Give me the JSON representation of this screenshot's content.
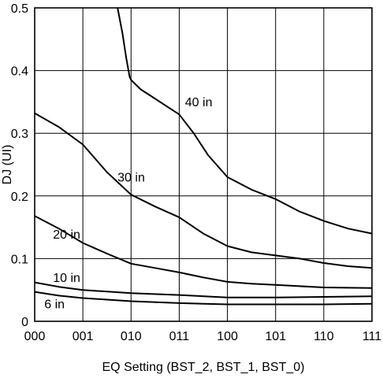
{
  "chart_data": {
    "type": "line",
    "xlabel": "EQ Setting (BST_2, BST_1, BST_0)",
    "ylabel": "DJ (UI)",
    "x_ticks": [
      "000",
      "001",
      "010",
      "011",
      "100",
      "101",
      "110",
      "111"
    ],
    "y_ticks": [
      "0",
      "0.1",
      "0.2",
      "0.3",
      "0.4",
      "0.5"
    ],
    "ylim": [
      0,
      0.5
    ],
    "grid": true,
    "legend": "inline labels",
    "series": [
      {
        "name": "6 in",
        "points": [
          [
            0,
            0.047
          ],
          [
            0.5,
            0.041
          ],
          [
            1,
            0.037
          ],
          [
            2,
            0.032
          ],
          [
            3,
            0.029
          ],
          [
            4,
            0.027
          ],
          [
            5,
            0.027
          ],
          [
            6,
            0.027
          ],
          [
            7,
            0.028
          ]
        ]
      },
      {
        "name": "10 in",
        "points": [
          [
            0,
            0.062
          ],
          [
            0.5,
            0.055
          ],
          [
            1,
            0.05
          ],
          [
            2,
            0.045
          ],
          [
            3,
            0.042
          ],
          [
            4,
            0.038
          ],
          [
            5,
            0.038
          ],
          [
            6,
            0.039
          ],
          [
            7,
            0.04
          ]
        ]
      },
      {
        "name": "20 in",
        "points": [
          [
            0,
            0.168
          ],
          [
            0.5,
            0.148
          ],
          [
            1,
            0.125
          ],
          [
            1.5,
            0.108
          ],
          [
            2,
            0.092
          ],
          [
            2.5,
            0.085
          ],
          [
            3,
            0.078
          ],
          [
            3.5,
            0.07
          ],
          [
            4,
            0.063
          ],
          [
            4.5,
            0.06
          ],
          [
            5,
            0.058
          ],
          [
            5.5,
            0.056
          ],
          [
            6,
            0.054
          ],
          [
            7,
            0.053
          ]
        ]
      },
      {
        "name": "30 in",
        "points": [
          [
            0,
            0.332
          ],
          [
            0.5,
            0.31
          ],
          [
            1,
            0.282
          ],
          [
            1.5,
            0.238
          ],
          [
            2,
            0.202
          ],
          [
            2.5,
            0.183
          ],
          [
            3,
            0.166
          ],
          [
            3.5,
            0.14
          ],
          [
            4,
            0.12
          ],
          [
            4.5,
            0.11
          ],
          [
            5,
            0.105
          ],
          [
            5.5,
            0.1
          ],
          [
            6,
            0.093
          ],
          [
            6.5,
            0.088
          ],
          [
            7,
            0.085
          ]
        ]
      },
      {
        "name": "40 in",
        "points": [
          [
            1.72,
            0.5
          ],
          [
            1.82,
            0.46
          ],
          [
            1.9,
            0.42
          ],
          [
            1.97,
            0.39
          ],
          [
            2,
            0.385
          ],
          [
            2.2,
            0.37
          ],
          [
            2.5,
            0.355
          ],
          [
            3,
            0.33
          ],
          [
            3.3,
            0.3
          ],
          [
            3.6,
            0.265
          ],
          [
            4,
            0.23
          ],
          [
            4.5,
            0.21
          ],
          [
            5,
            0.195
          ],
          [
            5.5,
            0.175
          ],
          [
            6,
            0.16
          ],
          [
            6.5,
            0.148
          ],
          [
            7,
            0.14
          ]
        ]
      }
    ],
    "labels": [
      {
        "text": "40 in",
        "x": 3.12,
        "y": 0.343
      },
      {
        "text": "30 in",
        "x": 1.72,
        "y": 0.223
      },
      {
        "text": "20 in",
        "x": 0.38,
        "y": 0.132
      },
      {
        "text": "10 in",
        "x": 0.38,
        "y": 0.063
      },
      {
        "text": "6 in",
        "x": 0.2,
        "y": 0.021
      }
    ]
  }
}
